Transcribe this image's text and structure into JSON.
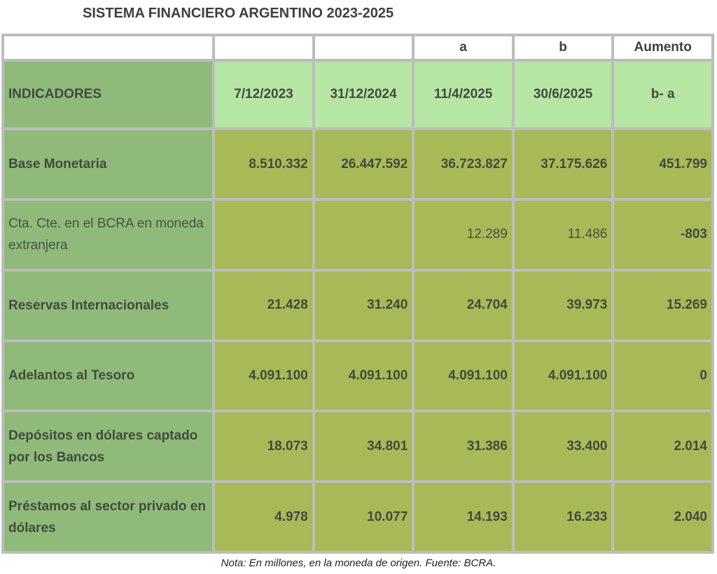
{
  "title": "SISTEMA FINANCIERO ARGENTINO 2023-2025",
  "letter_row": [
    "",
    "",
    "",
    "a",
    "b",
    "Aumento"
  ],
  "header": {
    "indicator_label": "INDICADORES",
    "dates": [
      "7/12/2023",
      "31/12/2024",
      "11/4/2025",
      "30/6/2025"
    ],
    "increase_label": "b- a"
  },
  "rows": [
    {
      "label": "Base Monetaria",
      "values": [
        "8.510.332",
        "26.447.592",
        "36.723.827",
        "37.175.626"
      ],
      "increase": "451.799"
    },
    {
      "label": "Cta. Cte. en el BCRA en moneda extranjera",
      "values": [
        "",
        "",
        "12.289",
        "11.486"
      ],
      "increase": "-803"
    },
    {
      "label": "Reservas Internacionales",
      "values": [
        "21.428",
        "31.240",
        "24.704",
        "39.973"
      ],
      "increase": "15.269"
    },
    {
      "label": "Adelantos al Tesoro",
      "values": [
        "4.091.100",
        "4.091.100",
        "4.091.100",
        "4.091.100"
      ],
      "increase": "0"
    },
    {
      "label": "Depósitos en dólares captado por los Bancos",
      "values": [
        "18.073",
        "34.801",
        "31.386",
        "33.400"
      ],
      "increase": "2.014"
    },
    {
      "label": "Préstamos al sector privado en dólares",
      "values": [
        "4.978",
        "10.077",
        "14.193",
        "16.233"
      ],
      "increase": "2.040"
    }
  ],
  "note": "Nota: En millones, en la moneda de origen. Fuente: BCRA.",
  "colors": {
    "header_light_green": "#b6e6a3",
    "label_green": "#8fba7a",
    "data_olive": "#a7ba57",
    "grid_gray": "#bdbdbd"
  }
}
